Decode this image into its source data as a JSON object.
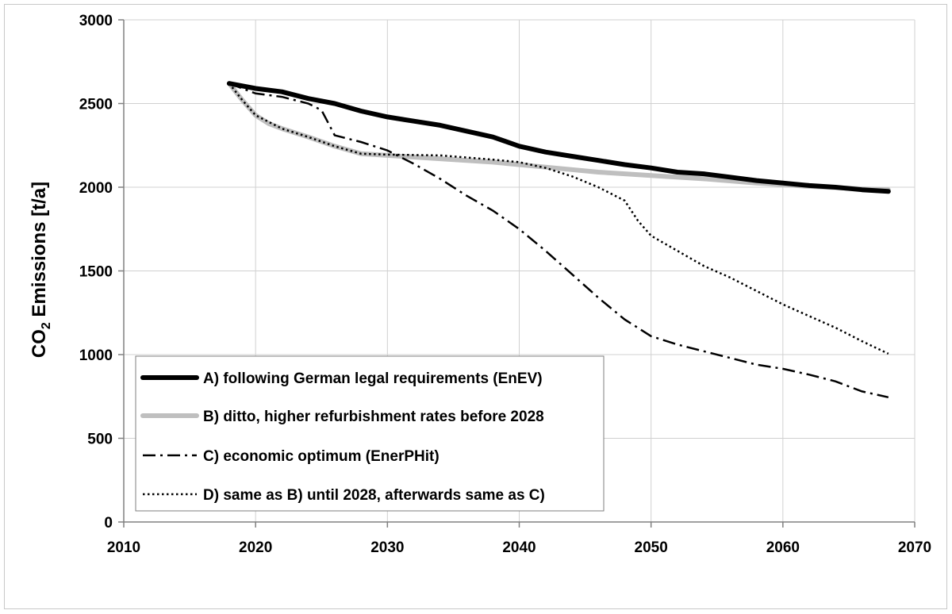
{
  "chart_data": {
    "type": "line",
    "title": "",
    "xlabel": "",
    "ylabel_parts": {
      "prefix": "CO",
      "subscript": "2",
      "suffix": " Emissions [t/a]"
    },
    "xlim": [
      2010,
      2070
    ],
    "ylim": [
      0,
      3000
    ],
    "x_ticks": [
      2010,
      2020,
      2030,
      2040,
      2050,
      2060,
      2070
    ],
    "y_ticks": [
      0,
      500,
      1000,
      1500,
      2000,
      2500,
      3000
    ],
    "grid": true,
    "legend_position": "lower-left",
    "series": [
      {
        "name": "A) following German legal requirements (EnEV)",
        "style": "solid-thick",
        "color": "#000000",
        "points": [
          [
            2018,
            2620
          ],
          [
            2020,
            2590
          ],
          [
            2022,
            2570
          ],
          [
            2024,
            2530
          ],
          [
            2026,
            2500
          ],
          [
            2028,
            2455
          ],
          [
            2030,
            2420
          ],
          [
            2032,
            2395
          ],
          [
            2034,
            2370
          ],
          [
            2036,
            2335
          ],
          [
            2038,
            2300
          ],
          [
            2040,
            2245
          ],
          [
            2042,
            2210
          ],
          [
            2044,
            2185
          ],
          [
            2046,
            2160
          ],
          [
            2048,
            2135
          ],
          [
            2050,
            2115
          ],
          [
            2052,
            2090
          ],
          [
            2054,
            2080
          ],
          [
            2056,
            2060
          ],
          [
            2058,
            2040
          ],
          [
            2060,
            2025
          ],
          [
            2062,
            2010
          ],
          [
            2064,
            2000
          ],
          [
            2066,
            1985
          ],
          [
            2068,
            1975
          ]
        ]
      },
      {
        "name": "B) ditto, higher refurbishment rates before 2028",
        "style": "solid-thick",
        "color": "#bfbfbf",
        "points": [
          [
            2018,
            2620
          ],
          [
            2019,
            2520
          ],
          [
            2020,
            2430
          ],
          [
            2021,
            2380
          ],
          [
            2022,
            2350
          ],
          [
            2024,
            2300
          ],
          [
            2026,
            2245
          ],
          [
            2028,
            2200
          ],
          [
            2030,
            2190
          ],
          [
            2034,
            2170
          ],
          [
            2038,
            2150
          ],
          [
            2042,
            2120
          ],
          [
            2046,
            2090
          ],
          [
            2050,
            2070
          ],
          [
            2054,
            2050
          ],
          [
            2058,
            2025
          ],
          [
            2062,
            2005
          ],
          [
            2066,
            1990
          ],
          [
            2068,
            1985
          ]
        ]
      },
      {
        "name": "C) economic optimum (EnerPHit)",
        "style": "dash-dot",
        "color": "#000000",
        "points": [
          [
            2018,
            2620
          ],
          [
            2020,
            2560
          ],
          [
            2022,
            2540
          ],
          [
            2024,
            2500
          ],
          [
            2025,
            2460
          ],
          [
            2026,
            2310
          ],
          [
            2028,
            2270
          ],
          [
            2030,
            2220
          ],
          [
            2032,
            2140
          ],
          [
            2034,
            2050
          ],
          [
            2036,
            1950
          ],
          [
            2038,
            1860
          ],
          [
            2040,
            1750
          ],
          [
            2042,
            1620
          ],
          [
            2044,
            1480
          ],
          [
            2046,
            1340
          ],
          [
            2048,
            1210
          ],
          [
            2050,
            1110
          ],
          [
            2052,
            1060
          ],
          [
            2054,
            1020
          ],
          [
            2056,
            980
          ],
          [
            2058,
            940
          ],
          [
            2060,
            915
          ],
          [
            2062,
            880
          ],
          [
            2064,
            840
          ],
          [
            2066,
            780
          ],
          [
            2068,
            745
          ]
        ]
      },
      {
        "name": "D) same as B) until 2028, afterwards same as C)",
        "style": "dotted",
        "color": "#000000",
        "points": [
          [
            2018,
            2620
          ],
          [
            2019,
            2520
          ],
          [
            2020,
            2430
          ],
          [
            2022,
            2350
          ],
          [
            2024,
            2300
          ],
          [
            2026,
            2245
          ],
          [
            2028,
            2200
          ],
          [
            2030,
            2195
          ],
          [
            2034,
            2190
          ],
          [
            2038,
            2165
          ],
          [
            2040,
            2150
          ],
          [
            2042,
            2115
          ],
          [
            2044,
            2065
          ],
          [
            2046,
            2000
          ],
          [
            2048,
            1920
          ],
          [
            2049,
            1800
          ],
          [
            2050,
            1710
          ],
          [
            2052,
            1620
          ],
          [
            2054,
            1530
          ],
          [
            2056,
            1460
          ],
          [
            2058,
            1380
          ],
          [
            2060,
            1300
          ],
          [
            2062,
            1230
          ],
          [
            2064,
            1160
          ],
          [
            2066,
            1080
          ],
          [
            2068,
            1005
          ]
        ]
      }
    ]
  }
}
